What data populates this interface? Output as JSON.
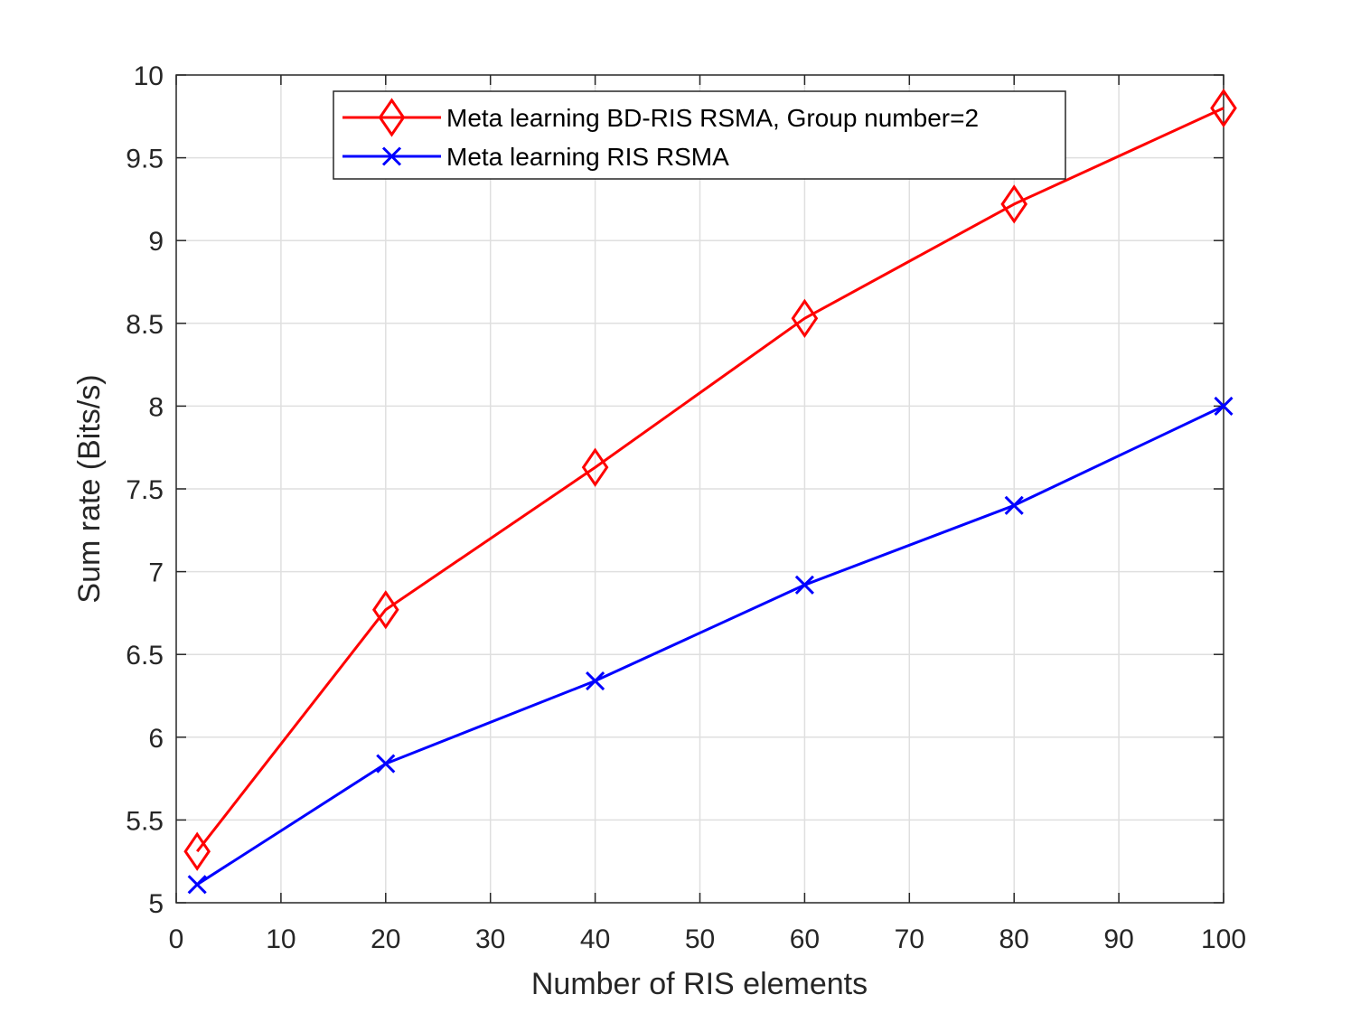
{
  "chart_data": {
    "type": "line",
    "xlabel": "Number of RIS elements",
    "ylabel": "Sum rate (Bits/s)",
    "xlim": [
      0,
      100
    ],
    "ylim": [
      5,
      10
    ],
    "xticks": [
      0,
      10,
      20,
      30,
      40,
      50,
      60,
      70,
      80,
      90,
      100
    ],
    "yticks": [
      5,
      5.5,
      6,
      6.5,
      7,
      7.5,
      8,
      8.5,
      9,
      9.5,
      10
    ],
    "xtick_labels": [
      "0",
      "10",
      "20",
      "30",
      "40",
      "50",
      "60",
      "70",
      "80",
      "90",
      "100"
    ],
    "ytick_labels": [
      "5",
      "5.5",
      "6",
      "6.5",
      "7",
      "7.5",
      "8",
      "8.5",
      "9",
      "9.5",
      "10"
    ],
    "grid": true,
    "legend_position": "top-center",
    "x": [
      2,
      20,
      40,
      60,
      80,
      100
    ],
    "series": [
      {
        "name": "Meta learning BD-RIS RSMA, Group number=2",
        "color": "#ff0000",
        "marker": "diamond",
        "values": [
          5.31,
          6.77,
          7.63,
          8.53,
          9.22,
          9.8
        ]
      },
      {
        "name": "Meta learning RIS RSMA",
        "color": "#0000ff",
        "marker": "x",
        "values": [
          5.11,
          5.84,
          6.34,
          6.92,
          7.4,
          8.0
        ]
      }
    ]
  }
}
